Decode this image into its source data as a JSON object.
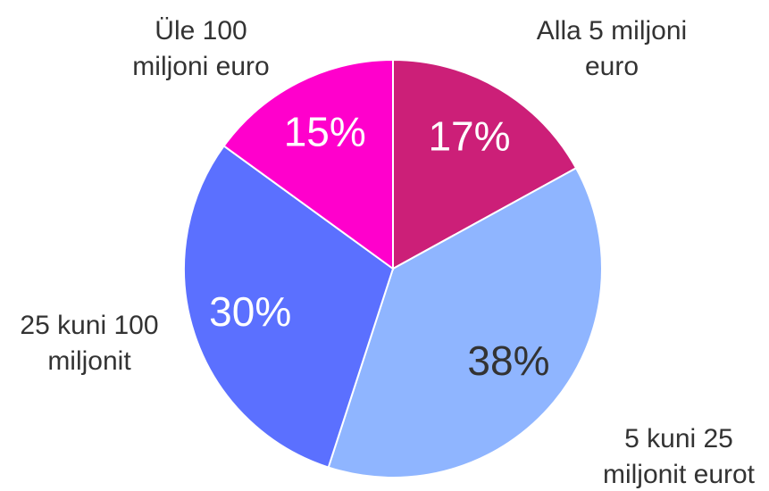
{
  "chart_data": {
    "type": "pie",
    "categories": [
      "Alla 5 miljoni\neuro",
      "5 kuni 25\nmiljonit eurot",
      "25 kuni 100\nmiljonit",
      "Üle 100\nmiljoni euro"
    ],
    "values": [
      17,
      38,
      30,
      15
    ],
    "value_labels": [
      "17%",
      "38%",
      "30%",
      "15%"
    ],
    "colors": [
      "#cc1f78",
      "#8fb5ff",
      "#5b70ff",
      "#ff00cc"
    ],
    "value_label_colors": [
      "#ffffff",
      "#333333",
      "#ffffff",
      "#ffffff"
    ]
  }
}
